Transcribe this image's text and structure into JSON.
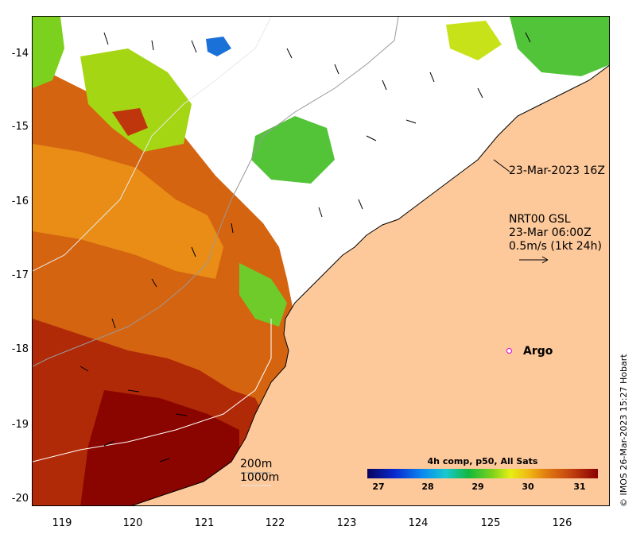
{
  "map": {
    "y_ticks": [
      "-14",
      "-15",
      "-16",
      "-17",
      "-18",
      "-19",
      "-20"
    ],
    "x_ticks": [
      "119",
      "120",
      "121",
      "122",
      "123",
      "124",
      "125",
      "126"
    ],
    "pass_label": "23-Mar-2023 16Z",
    "current_label": {
      "line1": "NRT00 GSL",
      "line2": "23-Mar 06:00Z",
      "line3": "0.5m/s (1kt 24h)"
    },
    "argo_label": "Argo",
    "depth_labels": {
      "shallow": "200m",
      "deep": "1000m"
    },
    "colorbar": {
      "title": "4h comp, p50, All Sats",
      "ticks": [
        "27",
        "28",
        "29",
        "30",
        "31"
      ]
    },
    "credit": "© IMOS 26-Mar-2023 15:27 Hobart",
    "colors": {
      "land": "#fdc89a",
      "warm": "#c0360c",
      "hot": "#9a0c00",
      "mid": "#e07a10",
      "green": "#6fcb2a",
      "cool": "#1a72d8",
      "argo": "#e000e0"
    }
  }
}
